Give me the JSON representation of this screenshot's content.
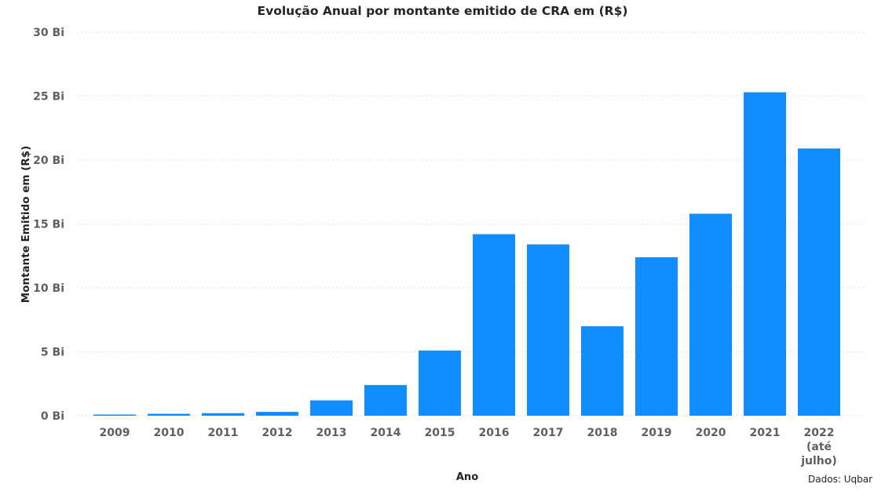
{
  "chart_data": {
    "type": "bar",
    "title": "Evolução Anual por montante emitido de CRA em (R$)",
    "xlabel": "Ano",
    "ylabel": "Montante Emitido em (R$)",
    "categories": [
      [
        "2009"
      ],
      [
        "2010"
      ],
      [
        "2011"
      ],
      [
        "2012"
      ],
      [
        "2013"
      ],
      [
        "2014"
      ],
      [
        "2015"
      ],
      [
        "2016"
      ],
      [
        "2017"
      ],
      [
        "2018"
      ],
      [
        "2019"
      ],
      [
        "2020"
      ],
      [
        "2021"
      ],
      [
        "2022",
        "(até",
        "julho)"
      ]
    ],
    "values": [
      0.05,
      0.15,
      0.2,
      0.3,
      1.2,
      2.4,
      5.1,
      14.2,
      13.4,
      7.0,
      12.4,
      15.8,
      25.3,
      20.9
    ],
    "ylim": [
      0,
      30
    ],
    "yticks": [
      {
        "value": 0,
        "label": "0 Bi"
      },
      {
        "value": 5,
        "label": "5 Bi"
      },
      {
        "value": 10,
        "label": "10 Bi"
      },
      {
        "value": 15,
        "label": "15 Bi"
      },
      {
        "value": 20,
        "label": "20 Bi"
      },
      {
        "value": 25,
        "label": "25 Bi"
      },
      {
        "value": 30,
        "label": "30 Bi"
      }
    ],
    "grid": true,
    "bar_color": "#118DFF",
    "grid_color": "#E1E1E1"
  },
  "footer": {
    "source": "Dados: Uqbar"
  }
}
